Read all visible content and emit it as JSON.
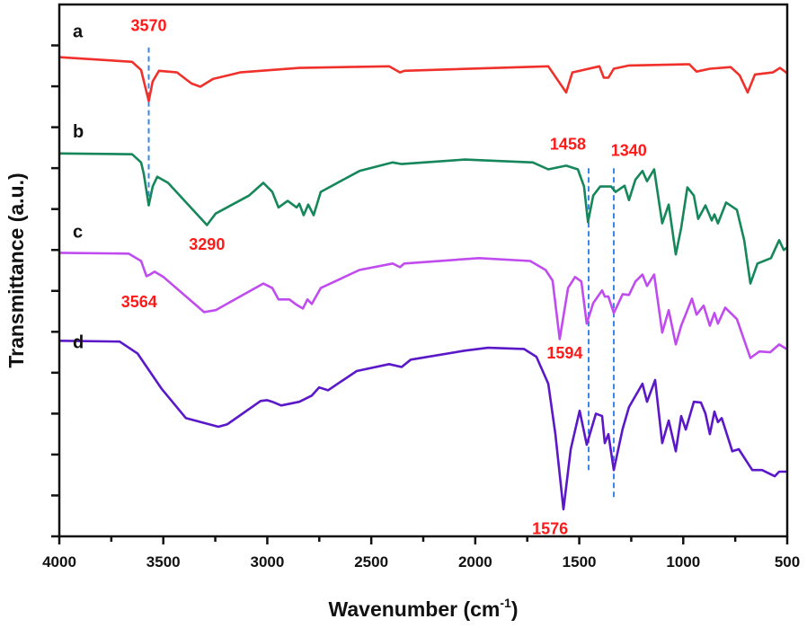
{
  "chart_data": {
    "type": "line",
    "title": "",
    "xlabel": "Wavenumber (cm",
    "xlabel_sup": "-1",
    "xlabel_close": ")",
    "ylabel": "Transmittance (a.u.)",
    "xlim": [
      4000,
      500
    ],
    "x_reversed": true,
    "ylim": [
      0,
      13
    ],
    "x_ticks": [
      "4000",
      "3500",
      "3000",
      "2500",
      "2000",
      "1500",
      "1000",
      "500"
    ],
    "x_tick_values": [
      4000,
      3500,
      3000,
      2500,
      2000,
      1500,
      1000,
      500
    ],
    "x_minor_step": 250,
    "y_tick_values": [
      1,
      2,
      3,
      4,
      5,
      6,
      7,
      8,
      9,
      10,
      11,
      12
    ],
    "y_tick_labels_shown": false,
    "grid": false,
    "series": [
      {
        "name": "a",
        "color": "#f0302a",
        "label_at": [
          3935,
          12.2
        ],
        "points": [
          [
            3996,
            11.71
          ],
          [
            3650,
            11.6
          ],
          [
            3607,
            11.4
          ],
          [
            3570,
            10.64
          ],
          [
            3551,
            11.12
          ],
          [
            3521,
            11.38
          ],
          [
            3434,
            11.34
          ],
          [
            3365,
            11.07
          ],
          [
            3322,
            10.99
          ],
          [
            3261,
            11.18
          ],
          [
            3131,
            11.34
          ],
          [
            2846,
            11.45
          ],
          [
            2414,
            11.49
          ],
          [
            2362,
            11.34
          ],
          [
            2341,
            11.38
          ],
          [
            1649,
            11.49
          ],
          [
            1563,
            10.85
          ],
          [
            1533,
            11.34
          ],
          [
            1403,
            11.49
          ],
          [
            1382,
            11.21
          ],
          [
            1360,
            11.21
          ],
          [
            1334,
            11.43
          ],
          [
            1261,
            11.51
          ],
          [
            971,
            11.54
          ],
          [
            936,
            11.36
          ],
          [
            872,
            11.43
          ],
          [
            772,
            11.47
          ],
          [
            729,
            11.27
          ],
          [
            690,
            10.85
          ],
          [
            655,
            11.29
          ],
          [
            569,
            11.34
          ],
          [
            535,
            11.45
          ],
          [
            500,
            11.32
          ]
        ]
      },
      {
        "name": "b",
        "color": "#15875a",
        "label_at": [
          3935,
          9.75
        ],
        "points": [
          [
            3996,
            9.36
          ],
          [
            3650,
            9.34
          ],
          [
            3607,
            9.14
          ],
          [
            3594,
            8.86
          ],
          [
            3570,
            8.09
          ],
          [
            3551,
            8.55
          ],
          [
            3529,
            8.79
          ],
          [
            3477,
            8.64
          ],
          [
            3290,
            7.61
          ],
          [
            3248,
            7.89
          ],
          [
            3088,
            8.33
          ],
          [
            3019,
            8.64
          ],
          [
            2976,
            8.42
          ],
          [
            2946,
            8.04
          ],
          [
            2902,
            8.2
          ],
          [
            2859,
            8.04
          ],
          [
            2846,
            8.13
          ],
          [
            2825,
            7.85
          ],
          [
            2803,
            8.11
          ],
          [
            2777,
            7.85
          ],
          [
            2743,
            8.42
          ],
          [
            2557,
            8.93
          ],
          [
            2397,
            9.14
          ],
          [
            2354,
            9.1
          ],
          [
            2051,
            9.21
          ],
          [
            1723,
            9.14
          ],
          [
            1649,
            8.97
          ],
          [
            1563,
            9.06
          ],
          [
            1507,
            8.97
          ],
          [
            1477,
            8.55
          ],
          [
            1458,
            7.68
          ],
          [
            1433,
            8.33
          ],
          [
            1399,
            8.55
          ],
          [
            1347,
            8.55
          ],
          [
            1325,
            8.42
          ],
          [
            1282,
            8.57
          ],
          [
            1261,
            8.22
          ],
          [
            1230,
            8.72
          ],
          [
            1196,
            8.93
          ],
          [
            1174,
            8.68
          ],
          [
            1140,
            8.97
          ],
          [
            1101,
            7.65
          ],
          [
            1070,
            8.11
          ],
          [
            1036,
            6.89
          ],
          [
            1010,
            7.54
          ],
          [
            980,
            8.53
          ],
          [
            949,
            8.33
          ],
          [
            928,
            7.76
          ],
          [
            893,
            8.09
          ],
          [
            863,
            7.72
          ],
          [
            850,
            7.87
          ],
          [
            833,
            7.65
          ],
          [
            794,
            8.16
          ],
          [
            742,
            7.98
          ],
          [
            707,
            7.24
          ],
          [
            677,
            6.18
          ],
          [
            643,
            6.67
          ],
          [
            578,
            6.8
          ],
          [
            539,
            7.24
          ],
          [
            517,
            7.0
          ],
          [
            500,
            7.06
          ]
        ]
      },
      {
        "name": "c",
        "color": "#c04cf0",
        "label_at": [
          3935,
          7.3
        ],
        "points": [
          [
            3996,
            6.93
          ],
          [
            3667,
            6.91
          ],
          [
            3607,
            6.73
          ],
          [
            3581,
            6.36
          ],
          [
            3564,
            6.4
          ],
          [
            3542,
            6.47
          ],
          [
            3499,
            6.34
          ],
          [
            3304,
            5.48
          ],
          [
            3248,
            5.53
          ],
          [
            3019,
            6.18
          ],
          [
            2976,
            6.07
          ],
          [
            2946,
            5.79
          ],
          [
            2894,
            5.79
          ],
          [
            2859,
            5.66
          ],
          [
            2829,
            5.57
          ],
          [
            2807,
            5.79
          ],
          [
            2786,
            5.68
          ],
          [
            2743,
            6.07
          ],
          [
            2557,
            6.51
          ],
          [
            2397,
            6.67
          ],
          [
            2362,
            6.58
          ],
          [
            2341,
            6.67
          ],
          [
            1982,
            6.8
          ],
          [
            1736,
            6.73
          ],
          [
            1662,
            6.51
          ],
          [
            1628,
            6.25
          ],
          [
            1594,
            4.82
          ],
          [
            1554,
            6.07
          ],
          [
            1520,
            6.34
          ],
          [
            1490,
            6.23
          ],
          [
            1464,
            5.2
          ],
          [
            1433,
            5.7
          ],
          [
            1390,
            6.01
          ],
          [
            1377,
            5.86
          ],
          [
            1360,
            5.86
          ],
          [
            1334,
            5.46
          ],
          [
            1291,
            5.92
          ],
          [
            1261,
            5.9
          ],
          [
            1230,
            6.23
          ],
          [
            1196,
            6.4
          ],
          [
            1174,
            6.12
          ],
          [
            1140,
            6.4
          ],
          [
            1101,
            4.98
          ],
          [
            1070,
            5.53
          ],
          [
            1036,
            4.69
          ],
          [
            1010,
            5.15
          ],
          [
            958,
            5.81
          ],
          [
            936,
            5.42
          ],
          [
            902,
            5.64
          ],
          [
            872,
            5.15
          ],
          [
            850,
            5.46
          ],
          [
            833,
            5.2
          ],
          [
            798,
            5.59
          ],
          [
            742,
            5.31
          ],
          [
            677,
            4.36
          ],
          [
            634,
            4.52
          ],
          [
            582,
            4.5
          ],
          [
            539,
            4.69
          ],
          [
            504,
            4.58
          ]
        ]
      },
      {
        "name": "d",
        "color": "#5a18c8",
        "label_at": [
          3935,
          4.6
        ],
        "points": [
          [
            3996,
            4.78
          ],
          [
            3710,
            4.76
          ],
          [
            3624,
            4.47
          ],
          [
            3507,
            3.6
          ],
          [
            3391,
            2.89
          ],
          [
            3235,
            2.68
          ],
          [
            3192,
            2.74
          ],
          [
            3032,
            3.31
          ],
          [
            3002,
            3.33
          ],
          [
            2976,
            3.29
          ],
          [
            2933,
            3.2
          ],
          [
            2846,
            3.29
          ],
          [
            2786,
            3.44
          ],
          [
            2751,
            3.64
          ],
          [
            2708,
            3.57
          ],
          [
            2570,
            4.04
          ],
          [
            2414,
            4.21
          ],
          [
            2354,
            4.14
          ],
          [
            2310,
            4.32
          ],
          [
            2051,
            4.54
          ],
          [
            1939,
            4.61
          ],
          [
            1766,
            4.58
          ],
          [
            1706,
            4.39
          ],
          [
            1649,
            3.73
          ],
          [
            1615,
            2.5
          ],
          [
            1576,
            0.66
          ],
          [
            1541,
            2.13
          ],
          [
            1498,
            3.07
          ],
          [
            1464,
            2.24
          ],
          [
            1420,
            3.0
          ],
          [
            1390,
            2.94
          ],
          [
            1377,
            2.28
          ],
          [
            1360,
            2.5
          ],
          [
            1334,
            1.62
          ],
          [
            1291,
            2.63
          ],
          [
            1261,
            3.16
          ],
          [
            1196,
            3.73
          ],
          [
            1174,
            3.29
          ],
          [
            1135,
            3.82
          ],
          [
            1101,
            2.28
          ],
          [
            1070,
            2.83
          ],
          [
            1036,
            2.08
          ],
          [
            1010,
            2.94
          ],
          [
            988,
            2.61
          ],
          [
            949,
            3.29
          ],
          [
            915,
            3.27
          ],
          [
            893,
            3.0
          ],
          [
            872,
            2.5
          ],
          [
            850,
            3.05
          ],
          [
            833,
            2.79
          ],
          [
            815,
            2.89
          ],
          [
            764,
            2.08
          ],
          [
            733,
            2.13
          ],
          [
            668,
            1.62
          ],
          [
            621,
            1.62
          ],
          [
            560,
            1.47
          ],
          [
            539,
            1.58
          ],
          [
            504,
            1.58
          ]
        ]
      }
    ],
    "annotations": [
      {
        "text": "3570",
        "x": 3570,
        "y": 12.35,
        "anchor": "middle"
      },
      {
        "text": "3290",
        "x": 3290,
        "y": 7.0,
        "anchor": "middle"
      },
      {
        "text": "3564",
        "x": 3530,
        "y": 5.6,
        "anchor": "end"
      },
      {
        "text": "1458",
        "x": 1468,
        "y": 9.45,
        "anchor": "end"
      },
      {
        "text": "1340",
        "x": 1348,
        "y": 9.3,
        "anchor": "start"
      },
      {
        "text": "1594",
        "x": 1570,
        "y": 4.35,
        "anchor": "middle"
      },
      {
        "text": "1576",
        "x": 1640,
        "y": 0.05,
        "anchor": "middle"
      }
    ],
    "annotation_color": "#ff1a1a",
    "reference_lines": [
      {
        "x": 3570,
        "y_from": 8.09,
        "y_to": 11.95
      },
      {
        "x": 1455,
        "y_from": 1.62,
        "y_to": 9.07
      },
      {
        "x": 1334,
        "y_from": 0.96,
        "y_to": 9.07
      }
    ],
    "reference_line_color": "#3a86e8"
  }
}
